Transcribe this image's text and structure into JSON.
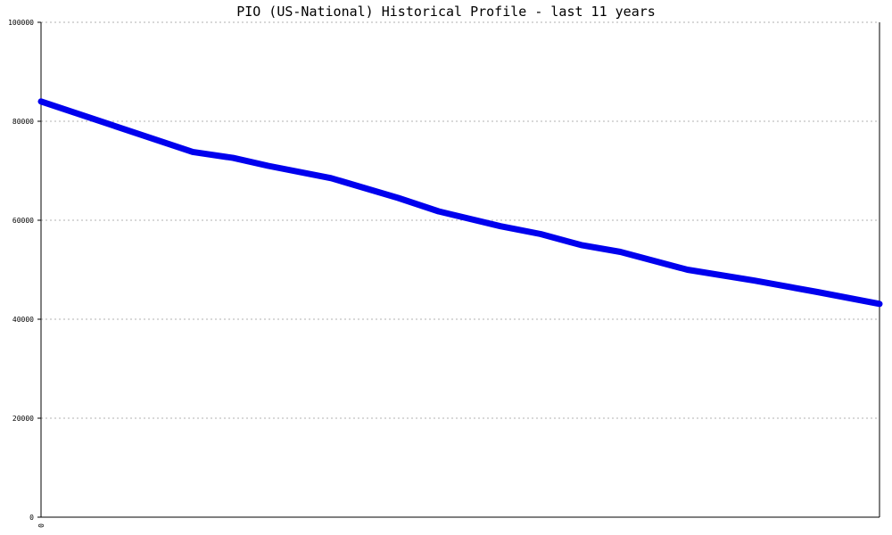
{
  "chart_data": {
    "type": "line",
    "title": "PIO (US-National) Historical Profile - last 11 years",
    "xlabel": "",
    "ylabel": "",
    "ylim": [
      0,
      100000
    ],
    "yticks": [
      0,
      20000,
      40000,
      60000,
      80000,
      100000
    ],
    "ytick_labels": [
      "0",
      "20000",
      "40000",
      "60000",
      "80000",
      "100000"
    ],
    "xlim": [
      0,
      1
    ],
    "xtick_label": "0",
    "grid": true,
    "series": [
      {
        "color": "#0000ee",
        "points": [
          {
            "x": 0.0,
            "y": 84000
          },
          {
            "x": 0.181,
            "y": 73800
          },
          {
            "x": 0.229,
            "y": 72600
          },
          {
            "x": 0.271,
            "y": 71000
          },
          {
            "x": 0.346,
            "y": 68500
          },
          {
            "x": 0.426,
            "y": 64500
          },
          {
            "x": 0.474,
            "y": 61800
          },
          {
            "x": 0.548,
            "y": 58800
          },
          {
            "x": 0.596,
            "y": 57200
          },
          {
            "x": 0.644,
            "y": 55000
          },
          {
            "x": 0.691,
            "y": 53600
          },
          {
            "x": 0.771,
            "y": 50000
          },
          {
            "x": 0.851,
            "y": 47800
          },
          {
            "x": 0.926,
            "y": 45500
          },
          {
            "x": 1.0,
            "y": 43100
          }
        ]
      }
    ]
  }
}
